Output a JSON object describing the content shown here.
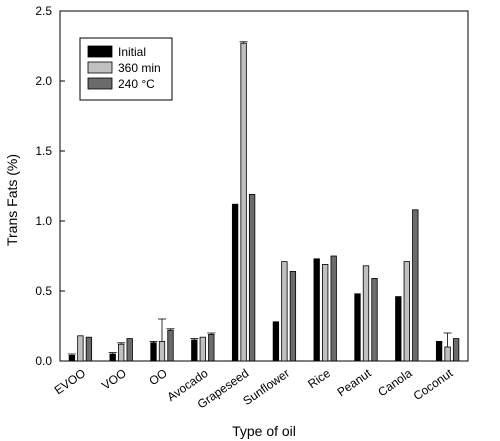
{
  "chart_data": {
    "type": "bar",
    "title": "",
    "xlabel": "Type of oil",
    "ylabel": "Trans Fats (%)",
    "ylim": [
      0,
      2.5
    ],
    "yticks": [
      "0.0",
      "0.5",
      "1.0",
      "1.5",
      "2.0",
      "2.5"
    ],
    "categories": [
      "EVOO",
      "VOO",
      "OO",
      "Avocado",
      "Grapeseed",
      "Sunflower",
      "Rice",
      "Peanut",
      "Canola",
      "Coconut"
    ],
    "series": [
      {
        "name": "Initial",
        "color": "#000000",
        "values": [
          0.04,
          0.05,
          0.13,
          0.15,
          1.12,
          0.28,
          0.73,
          0.48,
          0.46,
          0.14
        ],
        "errors": [
          0.01,
          0.01,
          0.01,
          0.01,
          0.0,
          0.0,
          0.0,
          0.0,
          0.0,
          0.0
        ]
      },
      {
        "name": "360 min",
        "color": "#c0c0c0",
        "values": [
          0.18,
          0.12,
          0.14,
          0.17,
          2.27,
          0.71,
          0.69,
          0.68,
          0.71,
          0.1
        ],
        "errors": [
          0.0,
          0.01,
          0.16,
          0.0,
          0.01,
          0.0,
          0.0,
          0.0,
          0.0,
          0.1
        ]
      },
      {
        "name": "240 °C",
        "color": "#6b6b6b",
        "values": [
          0.17,
          0.16,
          0.22,
          0.19,
          1.19,
          0.64,
          0.75,
          0.59,
          1.08,
          0.16
        ],
        "errors": [
          0.0,
          0.0,
          0.01,
          0.01,
          0.0,
          0.0,
          0.0,
          0.0,
          0.0,
          0.0
        ]
      }
    ],
    "legend_position": "top-left",
    "grid": false
  }
}
